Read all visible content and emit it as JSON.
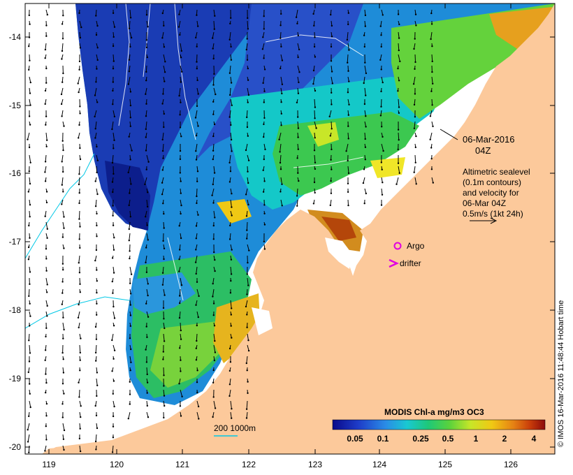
{
  "map": {
    "lon_ticks": [
      "119",
      "120",
      "121",
      "122",
      "123",
      "124",
      "125",
      "126"
    ],
    "lat_ticks": [
      "-14",
      "-15",
      "-16",
      "-17",
      "-18",
      "-19",
      "-20"
    ],
    "land_color": "#fcc99b",
    "ocean_nodata_color": "#ffffff"
  },
  "annotation": {
    "date": "06-Mar-2016",
    "time": "04Z",
    "legend_lines": [
      "Altimetric sealevel",
      "(0.1m contours)",
      "and velocity for",
      "06-Mar 04Z",
      "0.5m/s (1kt 24h)"
    ]
  },
  "markers": {
    "argo_label": "Argo",
    "drifter_label": "drifter",
    "argo_color": "#e000e0"
  },
  "bathymetry": {
    "label": "200  1000m",
    "color": "#00c8e6"
  },
  "colorbar": {
    "title": "MODIS Chl-a mg/m3 OC3",
    "ticks": [
      "0.05",
      "0.1",
      "0.25",
      "0.5",
      "1",
      "2",
      "4"
    ]
  },
  "credit": "© IMOS 16-Mar-2016 11:48:44 Hobart time"
}
